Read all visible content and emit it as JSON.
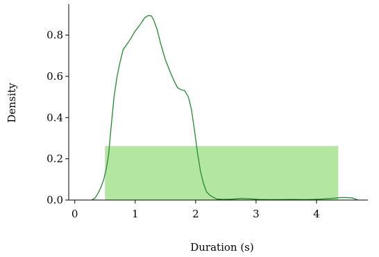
{
  "chart_data": {
    "type": "area",
    "xlabel": "Duration (s)",
    "ylabel": "Density",
    "xlim": [
      -0.1,
      4.85
    ],
    "ylim": [
      0.0,
      0.95
    ],
    "xticks": [
      0,
      1,
      2,
      3,
      4
    ],
    "yticks": [
      0.0,
      0.2,
      0.4,
      0.6,
      0.8
    ],
    "grid": false,
    "colors": {
      "band": "#b3e6a0",
      "line": "#1e8c2a"
    },
    "band": {
      "x_start": 0.5,
      "x_end": 4.36,
      "height": 0.262
    },
    "series": [
      {
        "x": [
          0.28,
          0.33,
          0.38,
          0.43,
          0.48,
          0.52,
          0.56,
          0.6,
          0.65,
          0.7,
          0.75,
          0.8,
          0.85,
          0.92,
          1.0,
          1.08,
          1.16,
          1.22,
          1.27,
          1.31,
          1.36,
          1.42,
          1.5,
          1.58,
          1.64,
          1.7,
          1.76,
          1.82,
          1.88,
          1.93,
          1.98,
          2.03,
          2.08,
          2.13,
          2.18,
          2.24,
          2.3,
          2.35,
          2.45,
          2.6,
          2.75,
          2.9,
          3.05,
          3.2,
          3.4,
          3.6,
          3.8,
          3.95,
          4.1,
          4.25,
          4.4,
          4.5,
          4.6,
          4.68
        ],
        "y": [
          0.0,
          0.008,
          0.03,
          0.06,
          0.1,
          0.15,
          0.22,
          0.35,
          0.5,
          0.6,
          0.67,
          0.73,
          0.75,
          0.78,
          0.82,
          0.85,
          0.885,
          0.895,
          0.893,
          0.87,
          0.83,
          0.76,
          0.68,
          0.62,
          0.58,
          0.545,
          0.535,
          0.53,
          0.5,
          0.44,
          0.34,
          0.23,
          0.14,
          0.08,
          0.04,
          0.022,
          0.012,
          0.005,
          0.003,
          0.004,
          0.008,
          0.006,
          0.003,
          0.002,
          0.002,
          0.003,
          0.002,
          0.003,
          0.005,
          0.008,
          0.012,
          0.012,
          0.01,
          0.0
        ]
      }
    ]
  }
}
